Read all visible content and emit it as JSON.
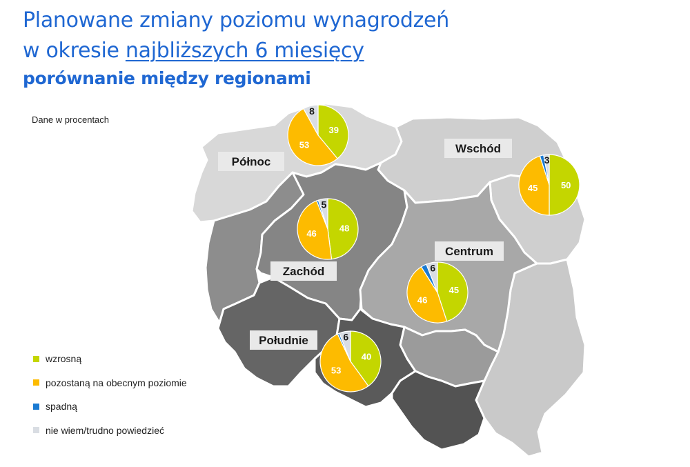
{
  "title": {
    "line1": "Planowane zmiany poziomu wynagrodzeń",
    "line2_prefix": "w okresie ",
    "line2_underlined": "najbliższych 6 miesięcy",
    "subtitle": "porównanie między regionami"
  },
  "note": "Dane w procentach",
  "colors": {
    "wzrosna": "#c4d600",
    "pozostana": "#fdbb00",
    "spadna": "#1a7ad2",
    "nie_wiem": "#d9dde3"
  },
  "chart_data": {
    "type": "pie",
    "categories": [
      "wzrosną",
      "pozostaną na obecnym poziomie",
      "spadną",
      "nie wiem/trudno powiedzieć"
    ],
    "regions": [
      {
        "name": "Północ",
        "values": [
          39,
          53,
          0,
          8
        ],
        "labels": [
          "39",
          "53",
          "",
          "8"
        ]
      },
      {
        "name": "Wschód",
        "values": [
          50,
          45,
          2,
          3
        ],
        "labels": [
          "50",
          "45",
          "",
          "3"
        ]
      },
      {
        "name": "Zachód",
        "values": [
          48,
          46,
          1,
          5
        ],
        "labels": [
          "48",
          "46",
          "",
          "5"
        ]
      },
      {
        "name": "Centrum",
        "values": [
          45,
          46,
          3,
          6
        ],
        "labels": [
          "45",
          "46",
          "",
          "6"
        ]
      },
      {
        "name": "Południe",
        "values": [
          40,
          53,
          1,
          6
        ],
        "labels": [
          "40",
          "53",
          "",
          "6"
        ]
      }
    ]
  }
}
